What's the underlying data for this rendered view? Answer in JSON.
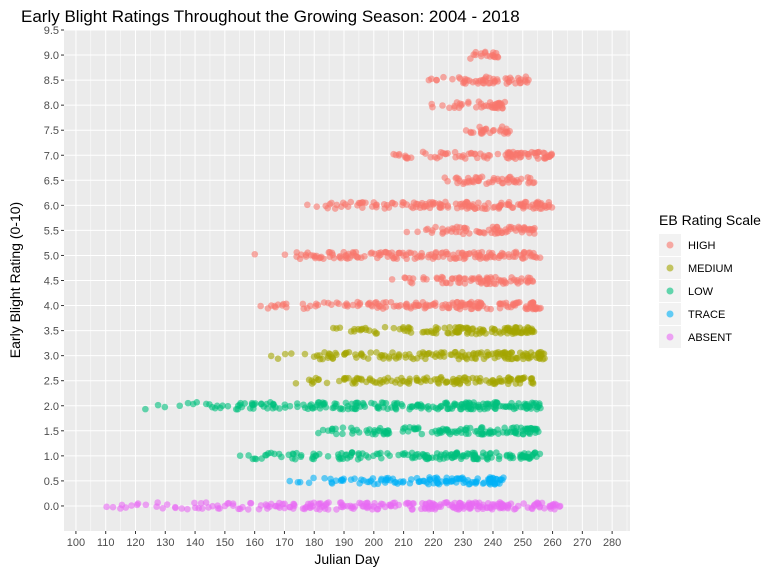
{
  "chart_data": {
    "type": "scatter",
    "title": "Early Blight Ratings Throughout the Growing Season: 2004 - 2018",
    "xlabel": "Julian Day",
    "ylabel": "Early Blight Rating (0-10)",
    "xlim": [
      96,
      286
    ],
    "ylim": [
      -0.5,
      9.5
    ],
    "xticks": [
      100,
      110,
      120,
      130,
      140,
      150,
      160,
      170,
      180,
      190,
      200,
      210,
      220,
      230,
      240,
      250,
      260,
      270,
      280
    ],
    "yticks": [
      "0.0",
      "0.5",
      "1.0",
      "1.5",
      "2.0",
      "2.5",
      "3.0",
      "3.5",
      "4.0",
      "4.5",
      "5.0",
      "5.5",
      "6.0",
      "6.5",
      "7.0",
      "7.5",
      "8.0",
      "8.5",
      "9.0",
      "9.5"
    ],
    "grid": true,
    "panel_background": "#ebebeb",
    "legend": {
      "title": "EB Rating Scale",
      "position": "right",
      "entries": [
        {
          "label": "HIGH",
          "color": "#F8766D"
        },
        {
          "label": "MEDIUM",
          "color": "#A3A500"
        },
        {
          "label": "LOW",
          "color": "#00BF7D"
        },
        {
          "label": "TRACE",
          "color": "#00B0F6"
        },
        {
          "label": "ABSENT",
          "color": "#E76BF3"
        }
      ]
    },
    "series": [
      {
        "name": "ABSENT",
        "color": "#E76BF3",
        "bands": [
          {
            "y": 0.0,
            "x_from": 103,
            "x_to": 263
          }
        ]
      },
      {
        "name": "TRACE",
        "color": "#00B0F6",
        "bands": [
          {
            "y": 0.5,
            "x_from": 170,
            "x_to": 244
          }
        ]
      },
      {
        "name": "LOW",
        "color": "#00BF7D",
        "bands": [
          {
            "y": 1.0,
            "x_from": 152,
            "x_to": 256
          },
          {
            "y": 1.5,
            "x_from": 175,
            "x_to": 256
          },
          {
            "y": 2.0,
            "x_from": 118,
            "x_to": 256
          }
        ]
      },
      {
        "name": "MEDIUM",
        "color": "#A3A500",
        "bands": [
          {
            "y": 2.5,
            "x_from": 172,
            "x_to": 254
          },
          {
            "y": 3.0,
            "x_from": 165,
            "x_to": 258
          },
          {
            "y": 3.5,
            "x_from": 178,
            "x_to": 254
          }
        ]
      },
      {
        "name": "HIGH",
        "color": "#F8766D",
        "bands": [
          {
            "y": 4.0,
            "x_from": 157,
            "x_to": 256
          },
          {
            "y": 4.5,
            "x_from": 205,
            "x_to": 254
          },
          {
            "y": 5.0,
            "x_from": 157,
            "x_to": 256
          },
          {
            "y": 5.5,
            "x_from": 210,
            "x_to": 254
          },
          {
            "y": 6.0,
            "x_from": 171,
            "x_to": 260
          },
          {
            "y": 6.5,
            "x_from": 222,
            "x_to": 254
          },
          {
            "y": 7.0,
            "x_from": 205,
            "x_to": 260
          },
          {
            "y": 7.5,
            "x_from": 229,
            "x_to": 246
          },
          {
            "y": 8.0,
            "x_from": 218,
            "x_to": 244
          },
          {
            "y": 8.5,
            "x_from": 218,
            "x_to": 252
          },
          {
            "y": 9.0,
            "x_from": 231,
            "x_to": 242
          }
        ]
      }
    ]
  }
}
